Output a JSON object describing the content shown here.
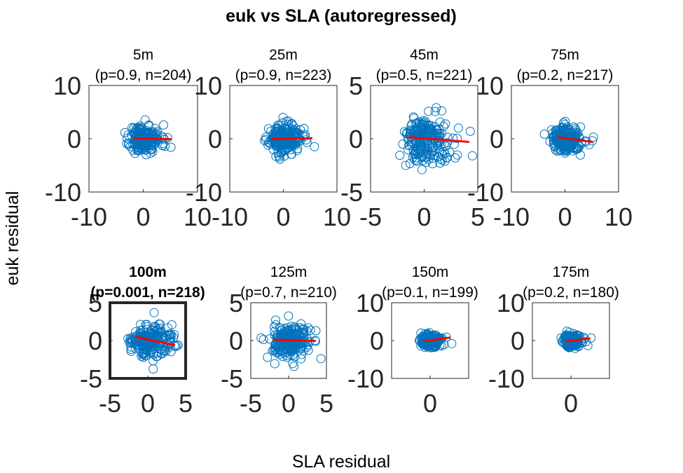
{
  "title": "euk vs SLA (autoregressed)",
  "xlabel": "SLA residual",
  "ylabel": "euk residual",
  "colors": {
    "points": "#0072BD",
    "fit": "#FF0000",
    "axes": "#262626",
    "background": "#FFFFFF"
  },
  "chart_data": [
    {
      "type": "scatter",
      "depth": "5m",
      "stats": "(p=0.9, n=204)",
      "highlight": false,
      "xlim": [
        -10,
        10
      ],
      "ylim": [
        -10,
        10
      ],
      "xticks": [
        -10,
        0,
        10
      ],
      "yticks": [
        -10,
        0,
        10
      ],
      "spread_x": 1.2,
      "spread_y": 1.3,
      "n": 204,
      "seed": 11,
      "outliers": [
        [
          4.5,
          0.2
        ],
        [
          5.1,
          -1.6
        ],
        [
          3.6,
          -0.9
        ]
      ],
      "fit": {
        "x": [
          -1.8,
          5.2
        ],
        "y": [
          0.1,
          -0.1
        ]
      }
    },
    {
      "type": "scatter",
      "depth": "25m",
      "stats": "(p=0.9, n=223)",
      "highlight": false,
      "xlim": [
        -10,
        10
      ],
      "ylim": [
        -10,
        10
      ],
      "xticks": [
        -10,
        0,
        10
      ],
      "yticks": [
        -10,
        0,
        10
      ],
      "spread_x": 1.3,
      "spread_y": 1.3,
      "n": 223,
      "seed": 23,
      "outliers": [
        [
          5.8,
          -1.5
        ],
        [
          4.0,
          0.4
        ],
        [
          -2.3,
          -0.2
        ]
      ],
      "fit": {
        "x": [
          -2.2,
          5.4
        ],
        "y": [
          -0.05,
          0.1
        ]
      }
    },
    {
      "type": "scatter",
      "depth": "45m",
      "stats": "(p=0.5, n=221)",
      "highlight": false,
      "xlim": [
        -5,
        5
      ],
      "ylim": [
        -5,
        5
      ],
      "xticks": [
        -5,
        0,
        5
      ],
      "yticks": [
        -5,
        0,
        5
      ],
      "spread_x": 0.9,
      "spread_y": 1.1,
      "n": 221,
      "seed": 45,
      "outliers": [
        [
          4.3,
          0.7
        ],
        [
          4.5,
          -1.6
        ],
        [
          3.2,
          1.0
        ],
        [
          2.9,
          -1.8
        ],
        [
          -0.2,
          -2.9
        ]
      ],
      "fit": {
        "x": [
          -1.6,
          4.2
        ],
        "y": [
          0.15,
          -0.3
        ]
      }
    },
    {
      "type": "scatter",
      "depth": "75m",
      "stats": "(p=0.2, n=217)",
      "highlight": false,
      "xlim": [
        -10,
        10
      ],
      "ylim": [
        -10,
        10
      ],
      "xticks": [
        -10,
        0,
        10
      ],
      "yticks": [
        -10,
        0,
        10
      ],
      "spread_x": 1.2,
      "spread_y": 1.1,
      "n": 217,
      "seed": 75,
      "outliers": [
        [
          5.3,
          0.3
        ],
        [
          3.8,
          -0.4
        ],
        [
          -1.6,
          1.4
        ]
      ],
      "fit": {
        "x": [
          -1.5,
          5.2
        ],
        "y": [
          0.3,
          -0.6
        ]
      }
    },
    {
      "type": "scatter",
      "depth": "100m",
      "stats": "(p=0.001, n=218)",
      "highlight": true,
      "xlim": [
        -5,
        5
      ],
      "ylim": [
        -5,
        5
      ],
      "xticks": [
        -5,
        0,
        5
      ],
      "yticks": [
        -5,
        0,
        5
      ],
      "spread_x": 1.1,
      "spread_y": 1.0,
      "n": 218,
      "seed": 100,
      "outliers": [
        [
          4.0,
          -0.6
        ],
        [
          3.4,
          0.4
        ],
        [
          2.2,
          -1.4
        ]
      ],
      "fit": {
        "x": [
          -1.6,
          3.6
        ],
        "y": [
          0.5,
          -0.65
        ]
      }
    },
    {
      "type": "scatter",
      "depth": "125m",
      "stats": "(p=0.7, n=210)",
      "highlight": false,
      "xlim": [
        -5,
        5
      ],
      "ylim": [
        -5,
        5
      ],
      "xticks": [
        -5,
        0,
        5
      ],
      "yticks": [
        -5,
        0,
        5
      ],
      "spread_x": 1.2,
      "spread_y": 1.1,
      "n": 210,
      "seed": 125,
      "outliers": [
        [
          3.5,
          0.0
        ],
        [
          -1.9,
          1.8
        ],
        [
          2.6,
          -1.3
        ]
      ],
      "fit": {
        "x": [
          -2.0,
          3.6
        ],
        "y": [
          0.1,
          -0.05
        ]
      }
    },
    {
      "type": "scatter",
      "depth": "150m",
      "stats": "(p=0.1, n=199)",
      "highlight": false,
      "xlim": [
        -10,
        10
      ],
      "ylim": [
        -10,
        10
      ],
      "xticks": [
        0
      ],
      "yticks": [
        -10,
        0,
        10
      ],
      "spread_x": 1.0,
      "spread_y": 0.9,
      "n": 199,
      "seed": 150,
      "outliers": [
        [
          5.6,
          -0.8
        ],
        [
          4.2,
          0.9
        ],
        [
          -1.3,
          -1.8
        ]
      ],
      "fit": {
        "x": [
          -1.5,
          5.2
        ],
        "y": [
          -0.2,
          0.8
        ]
      }
    },
    {
      "type": "scatter",
      "depth": "175m",
      "stats": "(p=0.2, n=180)",
      "highlight": false,
      "xlim": [
        -10,
        10
      ],
      "ylim": [
        -10,
        10
      ],
      "xticks": [
        0
      ],
      "yticks": [
        -10,
        0,
        10
      ],
      "spread_x": 0.9,
      "spread_y": 1.0,
      "n": 180,
      "seed": 175,
      "outliers": [
        [
          5.2,
          0.7
        ],
        [
          3.9,
          -0.3
        ],
        [
          -1.2,
          1.5
        ]
      ],
      "fit": {
        "x": [
          -1.4,
          5.0
        ],
        "y": [
          -0.3,
          0.6
        ]
      }
    }
  ]
}
